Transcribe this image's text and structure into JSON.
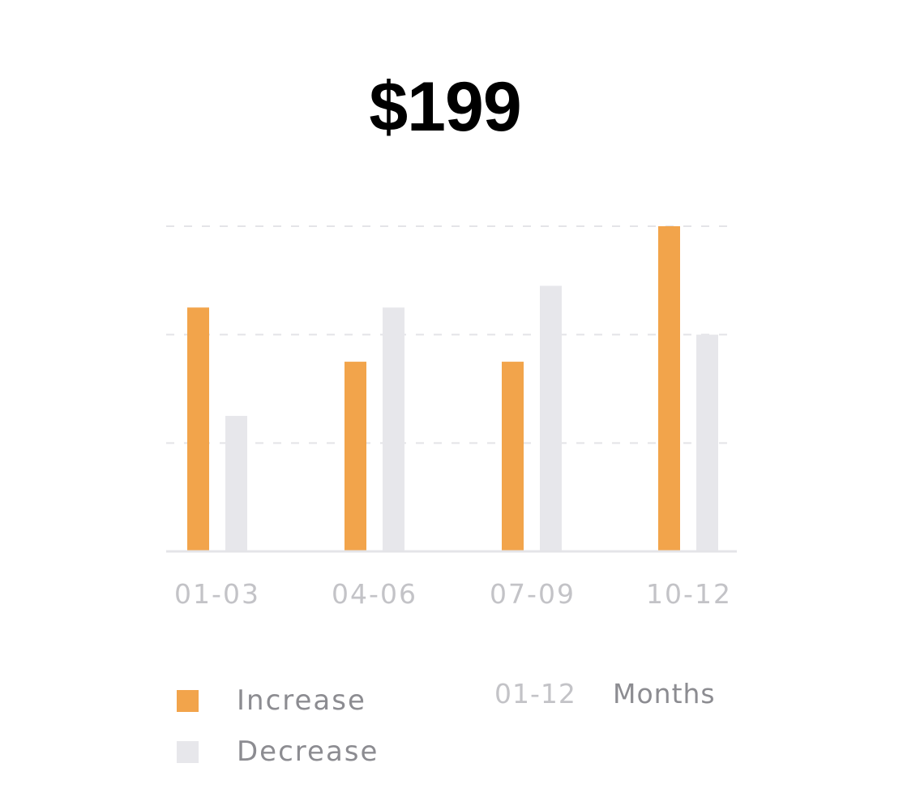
{
  "header": {
    "amount": "$199"
  },
  "colors": {
    "increase": "#f2a44b",
    "decrease": "#e7e7eb",
    "grid": "#e4e4e8",
    "axis": "#e4e4e8"
  },
  "chart_data": {
    "type": "bar",
    "categories": [
      "01-03",
      "04-06",
      "07-09",
      "10-12"
    ],
    "series": [
      {
        "name": "Increase",
        "values": [
          45,
          35,
          35,
          60
        ]
      },
      {
        "name": "Decrease",
        "values": [
          25,
          45,
          49,
          40
        ]
      }
    ],
    "ylim": [
      0,
      60
    ],
    "yticks": [
      0,
      20,
      40,
      60
    ],
    "grid": true,
    "legend": "bottom-left",
    "title": "",
    "xlabel": "",
    "ylabel": ""
  },
  "legend": {
    "items": [
      {
        "label": "Increase",
        "color": "#f2a44b"
      },
      {
        "label": "Decrease",
        "color": "#e7e7eb"
      }
    ]
  },
  "period": {
    "range": "01-12",
    "unit": "Months"
  }
}
